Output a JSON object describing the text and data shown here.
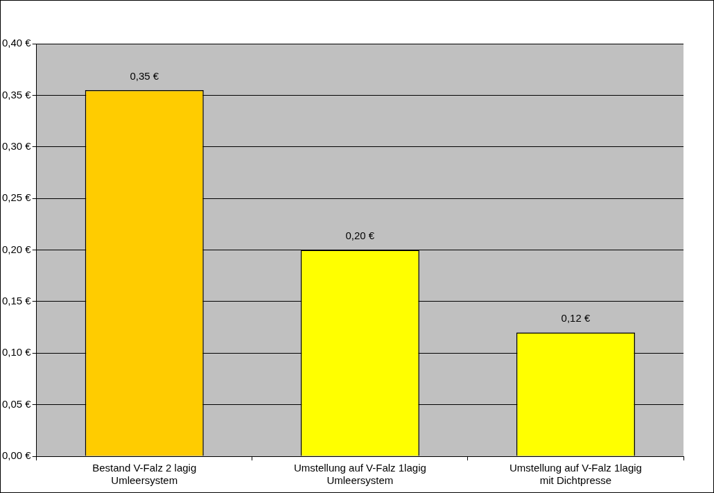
{
  "chart_data": {
    "type": "bar",
    "categories": [
      "Bestand V-Falz 2 lagig\nUmleersystem",
      "Umstellung auf V-Falz 1lagig\nUmleersystem",
      "Umstellung auf V-Falz 1lagig\nmit Dichtpresse"
    ],
    "values": [
      0.355,
      0.2,
      0.12
    ],
    "colors": [
      "#ffcc00",
      "#ffff00",
      "#ffff00"
    ],
    "value_labels": [
      "0,35 €",
      "0,20 €",
      "0,12 €"
    ],
    "ylim": [
      0,
      0.4
    ],
    "yticks": [
      {
        "value": 0,
        "label": "0,00 €"
      },
      {
        "value": 0.05,
        "label": "0,05 €"
      },
      {
        "value": 0.1,
        "label": "0,10 €"
      },
      {
        "value": 0.15,
        "label": "0,15 €"
      },
      {
        "value": 0.2,
        "label": "0,20 €"
      },
      {
        "value": 0.25,
        "label": "0,25 €"
      },
      {
        "value": 0.3,
        "label": "0,30 €"
      },
      {
        "value": 0.35,
        "label": "0,35 €"
      },
      {
        "value": 0.4,
        "label": "0,40 €"
      }
    ],
    "grid": "y",
    "legend": false
  }
}
